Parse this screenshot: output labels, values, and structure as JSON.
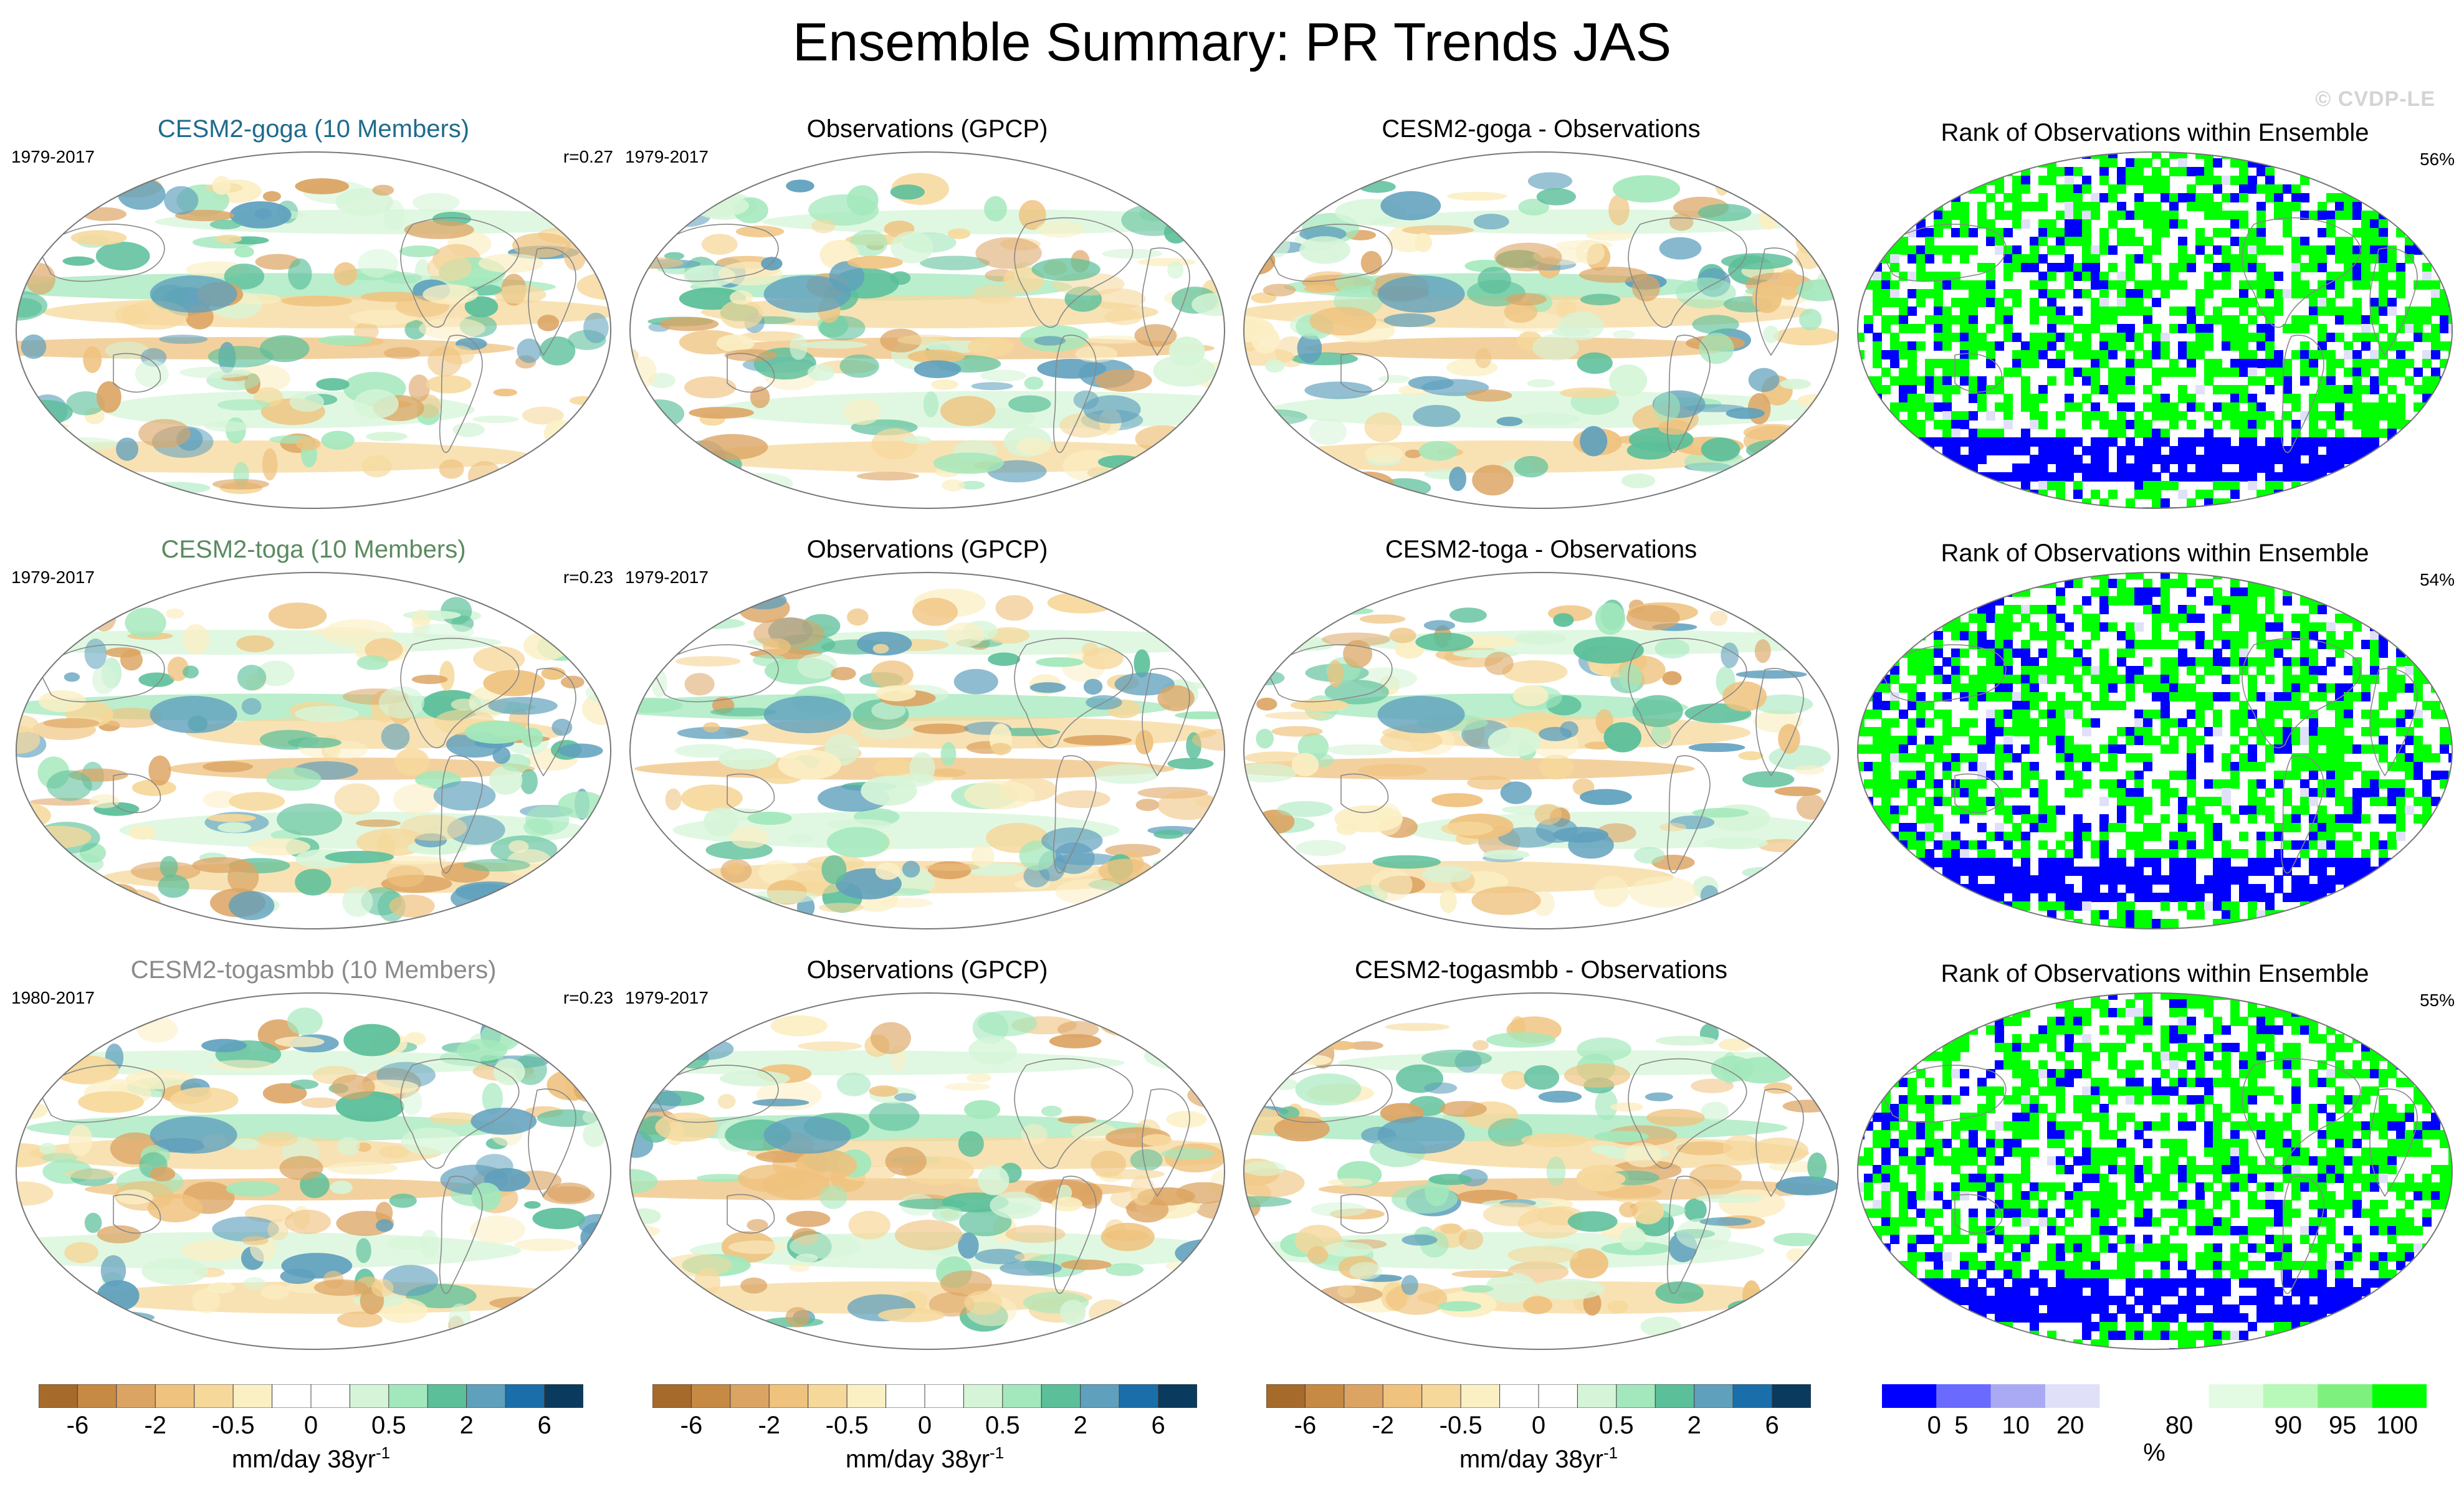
{
  "title": "Ensemble Summary: PR Trends JAS",
  "watermark": "© CVDP-LE",
  "rows": [
    {
      "model": {
        "title": "CESM2-goga (10 Members)",
        "title_color": "#1f6b8c",
        "period": "1979-2017",
        "corr": "r=0.27"
      },
      "obs": {
        "title": "Observations (GPCP)",
        "period": "1979-2017"
      },
      "diff": {
        "title": "CESM2-goga - Observations"
      },
      "rank": {
        "title": "Rank of Observations within Ensemble",
        "pct": "56%"
      }
    },
    {
      "model": {
        "title": "CESM2-toga (10 Members)",
        "title_color": "#5a8a60",
        "period": "1979-2017",
        "corr": "r=0.23"
      },
      "obs": {
        "title": "Observations (GPCP)",
        "period": "1979-2017"
      },
      "diff": {
        "title": "CESM2-toga - Observations"
      },
      "rank": {
        "title": "Rank of Observations within Ensemble",
        "pct": "54%"
      }
    },
    {
      "model": {
        "title": "CESM2-togasmbb (10 Members)",
        "title_color": "#8a8a8a",
        "period": "1980-2017",
        "corr": "r=0.23"
      },
      "obs": {
        "title": "Observations (GPCP)",
        "period": "1979-2017"
      },
      "diff": {
        "title": "CESM2-togasmbb - Observations"
      },
      "rank": {
        "title": "Rank of Observations within Ensemble",
        "pct": "55%"
      }
    }
  ],
  "trend_colorbar": {
    "colors": [
      "#a66a2a",
      "#c68a45",
      "#dca463",
      "#efc27e",
      "#f6d89b",
      "#fbefc4",
      "#ffffff",
      "#ffffff",
      "#d6f5d8",
      "#a3e8bc",
      "#5bbf9a",
      "#5fa0bd",
      "#1a6faa",
      "#0a3a5e"
    ],
    "tick_labels": [
      "-6",
      "-2",
      "-0.5",
      "0",
      "0.5",
      "2",
      "6"
    ],
    "tick_positions": [
      1,
      3,
      5,
      7,
      9,
      11,
      13
    ],
    "unit": "mm/day 38yr",
    "unit_exp": "-1"
  },
  "rank_colorbar": {
    "colors": [
      "#0000ff",
      "#6a6aff",
      "#aaaaf4",
      "#e0e0f8",
      "#ffffff",
      "#ffffff",
      "#e2fbe2",
      "#b8f8b8",
      "#7ef07e",
      "#00ff00"
    ],
    "tick_labels": [
      "0",
      "5",
      "10",
      "20",
      "80",
      "90",
      "95",
      "100"
    ],
    "tick_positions": [
      0.5,
      1,
      2,
      3,
      5,
      7,
      8,
      9
    ],
    "unit": "%"
  },
  "icons": {
    "ocean_outline": "map-outline-icon"
  }
}
